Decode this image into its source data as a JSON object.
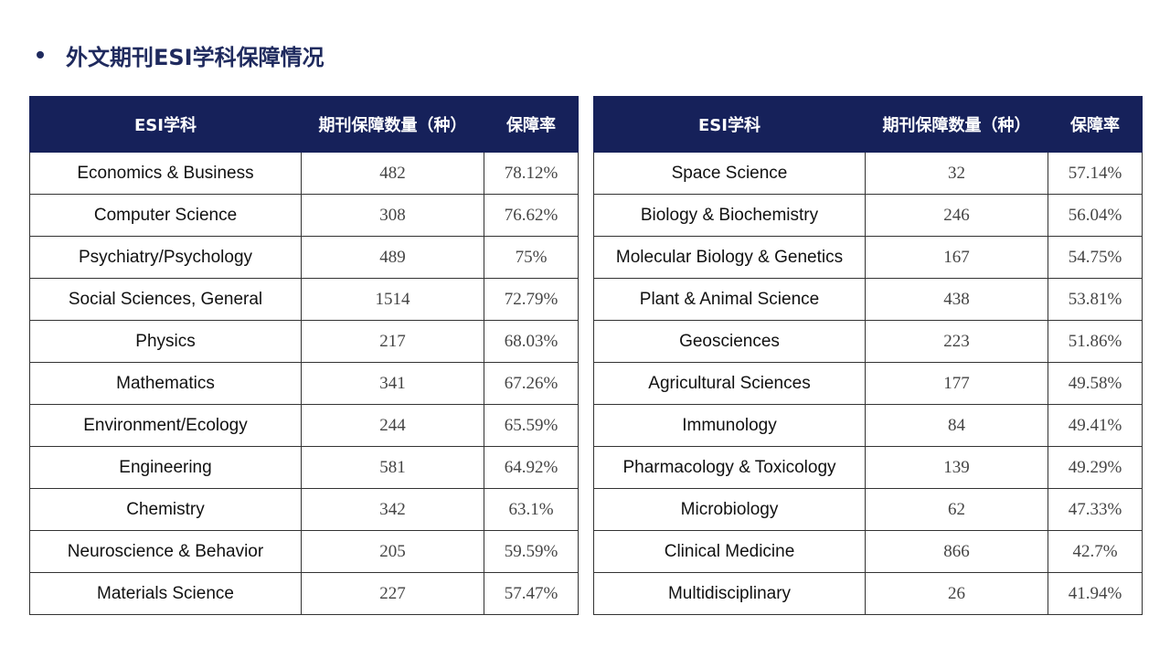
{
  "title": "外文期刊ESI学科保障情况",
  "headers": {
    "subject": "ESI学科",
    "count": "期刊保障数量（种）",
    "rate": "保障率"
  },
  "left_rows": [
    {
      "subject": "Economics & Business",
      "count": "482",
      "rate": "78.12%"
    },
    {
      "subject": "Computer  Science",
      "count": "308",
      "rate": "76.62%"
    },
    {
      "subject": "Psychiatry/Psychology",
      "count": "489",
      "rate": "75%"
    },
    {
      "subject": "Social Sciences, General",
      "count": "1514",
      "rate": "72.79%"
    },
    {
      "subject": "Physics",
      "count": "217",
      "rate": "68.03%"
    },
    {
      "subject": "Mathematics",
      "count": "341",
      "rate": "67.26%"
    },
    {
      "subject": "Environment/Ecology",
      "count": "244",
      "rate": "65.59%"
    },
    {
      "subject": "Engineering",
      "count": "581",
      "rate": "64.92%"
    },
    {
      "subject": "Chemistry",
      "count": "342",
      "rate": "63.1%"
    },
    {
      "subject": "Neuroscience & Behavior",
      "count": "205",
      "rate": "59.59%"
    },
    {
      "subject": "Materials Science",
      "count": "227",
      "rate": "57.47%"
    }
  ],
  "right_rows": [
    {
      "subject": "Space Science",
      "count": "32",
      "rate": "57.14%"
    },
    {
      "subject": "Biology & Biochemistry",
      "count": "246",
      "rate": "56.04%"
    },
    {
      "subject": "Molecular Biology & Genetics",
      "count": "167",
      "rate": "54.75%"
    },
    {
      "subject": "Plant & Animal  Science",
      "count": "438",
      "rate": "53.81%"
    },
    {
      "subject": "Geosciences",
      "count": "223",
      "rate": "51.86%"
    },
    {
      "subject": "Agricultural  Sciences",
      "count": "177",
      "rate": "49.58%"
    },
    {
      "subject": "Immunology",
      "count": "84",
      "rate": "49.41%"
    },
    {
      "subject": "Pharmacology  & Toxicology",
      "count": "139",
      "rate": "49.29%"
    },
    {
      "subject": "Microbiology",
      "count": "62",
      "rate": "47.33%"
    },
    {
      "subject": "Clinical Medicine",
      "count": "866",
      "rate": "42.7%"
    },
    {
      "subject": "Multidisciplinary",
      "count": "26",
      "rate": "41.94%"
    }
  ],
  "colors": {
    "header_bg": "#16215a",
    "title": "#1f2a5e"
  }
}
